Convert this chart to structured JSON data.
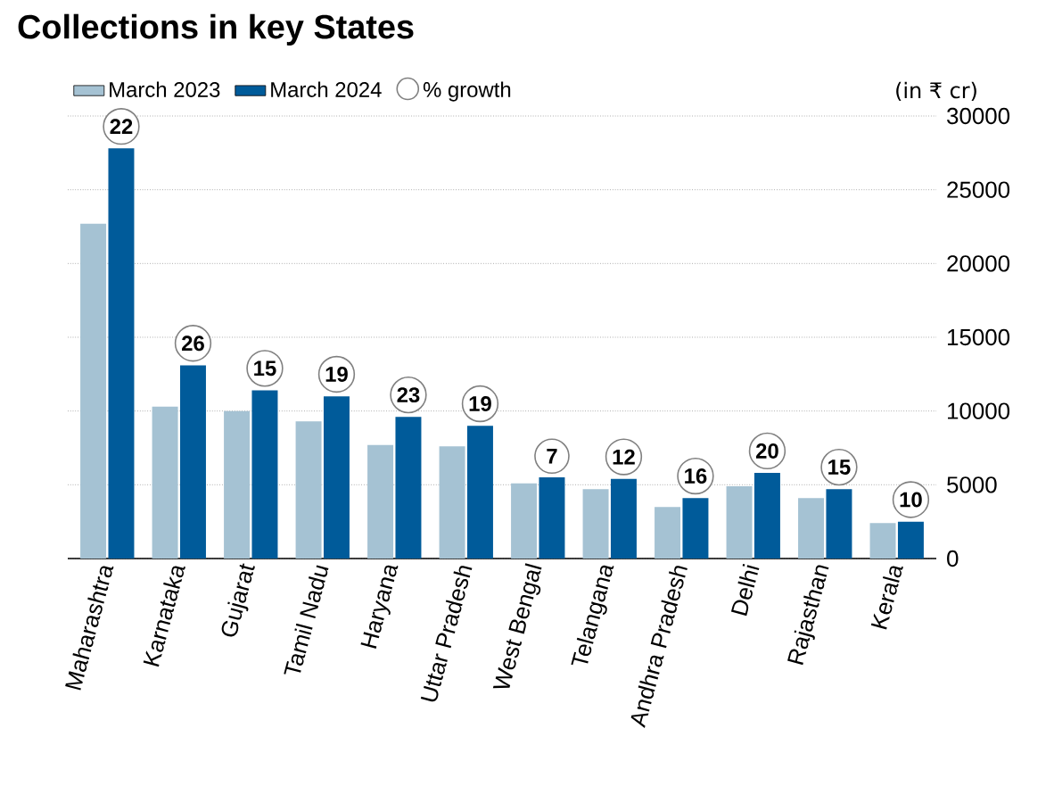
{
  "chart_data": {
    "type": "bar",
    "title": "Collections in key States",
    "ylabel": "(in ₹ cr)",
    "categories": [
      "Maharashtra",
      "Karnataka",
      "Gujarat",
      "Tamil Nadu",
      "Haryana",
      "Uttar Pradesh",
      "West Bengal",
      "Telangana",
      "Andhra Pradesh",
      "Delhi",
      "Rajasthan",
      "Kerala"
    ],
    "series": [
      {
        "name": "March 2023",
        "color": "#a5c2d3",
        "values": [
          22700,
          10300,
          10000,
          9300,
          7700,
          7600,
          5100,
          4700,
          3500,
          4900,
          4100,
          2400
        ]
      },
      {
        "name": "March 2024",
        "color": "#005b9a",
        "values": [
          27800,
          13100,
          11400,
          11000,
          9600,
          9000,
          5500,
          5400,
          4100,
          5800,
          4700,
          2500
        ]
      }
    ],
    "ylim": [
      0,
      30000
    ],
    "yticks": [
      0,
      5000,
      10000,
      15000,
      20000,
      25000,
      30000
    ],
    "grid": "y",
    "legend": "top left",
    "annotations": [
      "% growth",
      {
        "text": "22",
        "x": "Maharashtra",
        "y": 27800
      },
      {
        "text": "26",
        "x": "Karnataka",
        "y": 13100
      },
      {
        "text": "15",
        "x": "Gujarat",
        "y": 11400
      },
      {
        "text": "19",
        "x": "Tamil Nadu",
        "y": 11000
      },
      {
        "text": "23",
        "x": "Haryana",
        "y": 9600
      },
      {
        "text": "19",
        "x": "Uttar Pradesh",
        "y": 9000
      },
      {
        "text": "7",
        "x": "West Bengal",
        "y": 5500
      },
      {
        "text": "12",
        "x": "Telangana",
        "y": 5400
      },
      {
        "text": "16",
        "x": "Andhra Pradesh",
        "y": 4100
      },
      {
        "text": "20",
        "x": "Delhi",
        "y": 5800
      },
      {
        "text": "15",
        "x": "Rajasthan",
        "y": 4700
      },
      {
        "text": "10",
        "x": "Kerala",
        "y": 2500
      }
    ]
  }
}
